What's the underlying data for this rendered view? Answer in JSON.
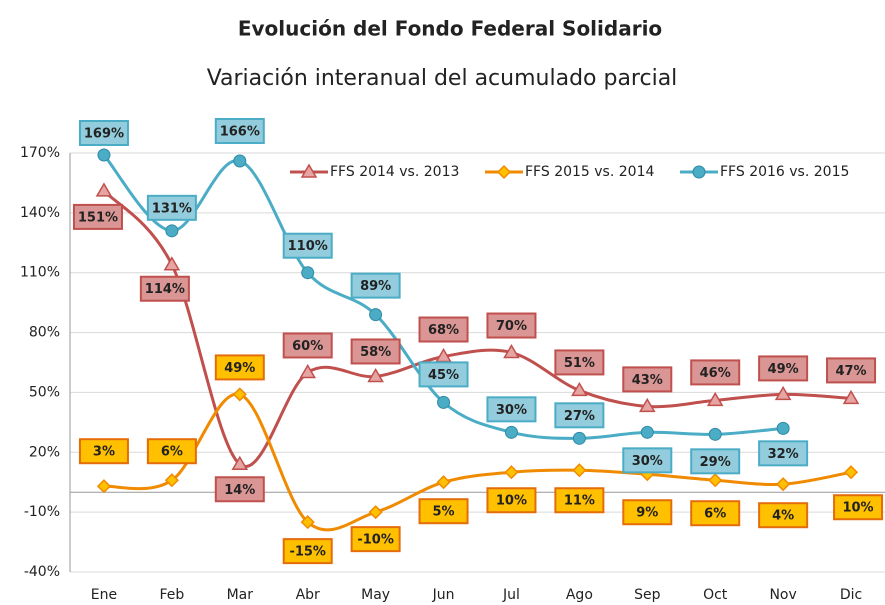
{
  "chart_data": {
    "type": "line",
    "title": "Evolución del Fondo Federal Solidario",
    "subtitle": "Variación interanual del acumulado parcial",
    "categories": [
      "Ene",
      "Feb",
      "Mar",
      "Abr",
      "May",
      "Jun",
      "Jul",
      "Ago",
      "Sep",
      "Oct",
      "Nov",
      "Dic"
    ],
    "series": [
      {
        "name": "FFS 2014 vs. 2013",
        "color": "#c0504d",
        "marker": "triangle",
        "values": [
          151,
          114,
          14,
          60,
          58,
          68,
          70,
          51,
          43,
          46,
          49,
          47
        ],
        "value_labels": [
          "151%",
          "114%",
          "14%",
          "60%",
          "58%",
          "68%",
          "70%",
          "51%",
          "43%",
          "46%",
          "49%",
          "47%"
        ]
      },
      {
        "name": "FFS 2015 vs. 2014",
        "color": "#f08a00",
        "marker": "diamond",
        "values": [
          3,
          6,
          49,
          -15,
          -10,
          5,
          10,
          11,
          9,
          6,
          4,
          10
        ],
        "value_labels": [
          "3%",
          "6%",
          "49%",
          "-15%",
          "-10%",
          "5%",
          "10%",
          "11%",
          "9%",
          "6%",
          "4%",
          "10%"
        ]
      },
      {
        "name": "FFS 2016 vs. 2015",
        "color": "#4bacc6",
        "marker": "circle",
        "values": [
          169,
          131,
          166,
          110,
          89,
          45,
          30,
          27,
          30,
          29,
          32,
          null
        ],
        "value_labels": [
          "169%",
          "131%",
          "166%",
          "110%",
          "89%",
          "45%",
          "30%",
          "27%",
          "30%",
          "29%",
          "32%",
          null
        ]
      }
    ],
    "ylim": [
      -40,
      170
    ],
    "yticks": [
      {
        "value": -40,
        "label": "-40%"
      },
      {
        "value": -10,
        "label": "-10%"
      },
      {
        "value": 20,
        "label": "20%"
      },
      {
        "value": 50,
        "label": "50%"
      },
      {
        "value": 80,
        "label": "80%"
      },
      {
        "value": 110,
        "label": "110%"
      },
      {
        "value": 140,
        "label": "140%"
      },
      {
        "value": 170,
        "label": "170%"
      }
    ],
    "grid": true,
    "smooth": true,
    "legend": "top-right"
  }
}
